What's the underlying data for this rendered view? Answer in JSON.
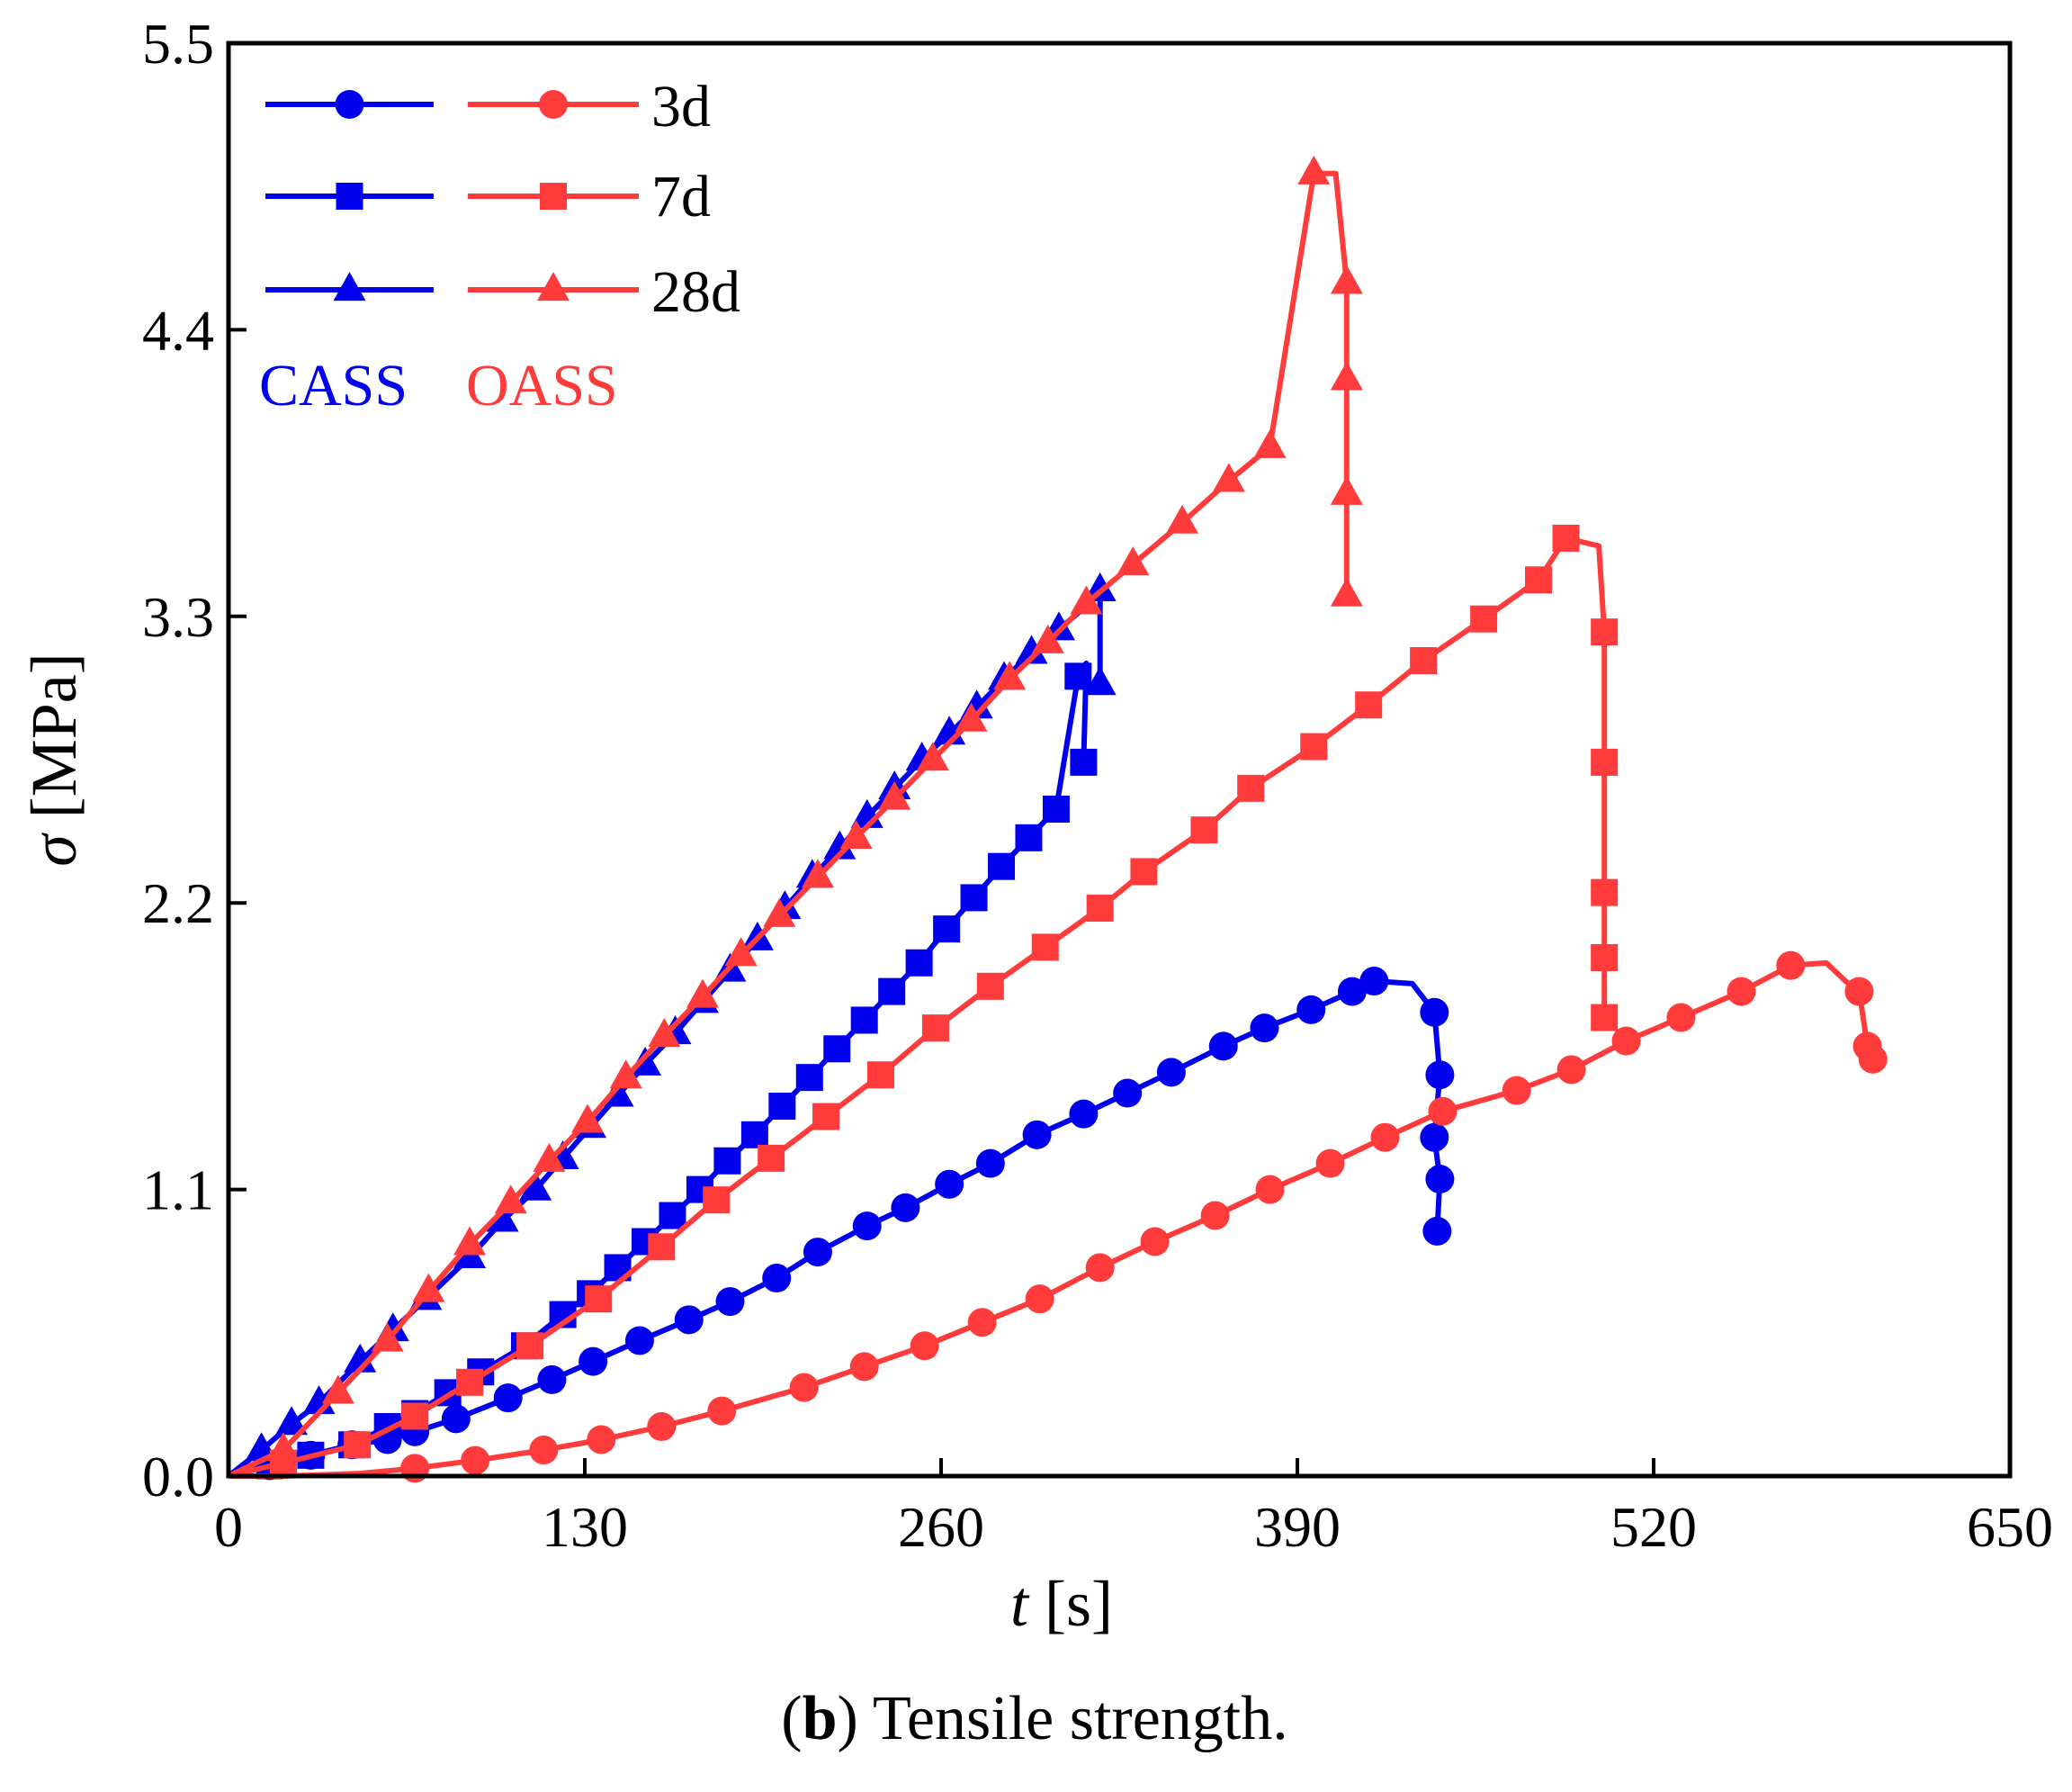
{
  "colors": {
    "cass": "#0000ee",
    "oass": "#ff3b3b",
    "axis": "#000000"
  },
  "chart_data": {
    "type": "line",
    "title": "",
    "xlabel_symbol": "t",
    "xlabel_unit": "[s]",
    "ylabel_symbol": "σ",
    "ylabel_unit": "[MPa]",
    "xlim": [
      0,
      650
    ],
    "ylim": [
      0,
      5.5
    ],
    "xticks": [
      "0",
      "130",
      "260",
      "390",
      "520",
      "650"
    ],
    "yticks": [
      "0.0",
      "1.1",
      "2.2",
      "3.3",
      "4.4",
      "5.5"
    ],
    "legend": {
      "placement": "top-left",
      "labels": [
        "3d",
        "7d",
        "28d"
      ],
      "group_labels": [
        "CASS",
        "OASS"
      ]
    },
    "series": [
      {
        "name": "CASS 3d",
        "group": "CASS",
        "age": "3d",
        "marker": "circle",
        "x": [
          0,
          15,
          30,
          45,
          58,
          68,
          83,
          102,
          118,
          133,
          150,
          168,
          183,
          200,
          215,
          233,
          247,
          263,
          278,
          295,
          312,
          328,
          344,
          363,
          378,
          395,
          410,
          418,
          432,
          440,
          442,
          440,
          442,
          441
        ],
        "y": [
          0,
          0.04,
          0.08,
          0.12,
          0.14,
          0.17,
          0.22,
          0.3,
          0.37,
          0.44,
          0.52,
          0.6,
          0.67,
          0.76,
          0.86,
          0.96,
          1.03,
          1.12,
          1.2,
          1.31,
          1.39,
          1.47,
          1.55,
          1.65,
          1.72,
          1.79,
          1.86,
          1.9,
          1.89,
          1.78,
          1.54,
          1.3,
          1.14,
          0.94
        ],
        "marks": [
          false,
          true,
          true,
          true,
          true,
          true,
          true,
          true,
          true,
          true,
          true,
          true,
          true,
          true,
          true,
          true,
          true,
          true,
          true,
          true,
          true,
          true,
          true,
          true,
          true,
          true,
          true,
          true,
          false,
          true,
          true,
          true,
          true,
          true
        ]
      },
      {
        "name": "CASS 7d",
        "group": "CASS",
        "age": "7d",
        "marker": "square",
        "x": [
          0,
          15,
          30,
          45,
          58,
          68,
          80,
          92,
          108,
          122,
          132,
          142,
          152,
          162,
          172,
          182,
          192,
          202,
          212,
          222,
          232,
          242,
          252,
          262,
          272,
          282,
          292,
          302,
          310,
          313,
          312
        ],
        "y": [
          0,
          0.04,
          0.08,
          0.12,
          0.19,
          0.24,
          0.32,
          0.4,
          0.5,
          0.62,
          0.7,
          0.8,
          0.9,
          1.0,
          1.1,
          1.21,
          1.31,
          1.42,
          1.53,
          1.64,
          1.75,
          1.86,
          1.97,
          2.1,
          2.22,
          2.34,
          2.45,
          2.56,
          3.07,
          3.12,
          2.74
        ],
        "marks": [
          false,
          true,
          true,
          true,
          true,
          true,
          true,
          true,
          true,
          true,
          true,
          true,
          true,
          true,
          true,
          true,
          true,
          true,
          true,
          true,
          true,
          true,
          true,
          true,
          true,
          true,
          true,
          true,
          true,
          false,
          true
        ]
      },
      {
        "name": "CASS 28d",
        "group": "CASS",
        "age": "28d",
        "marker": "triangle",
        "x": [
          0,
          12,
          23,
          33,
          48,
          60,
          72,
          88,
          100,
          112,
          122,
          132,
          142,
          152,
          163,
          173,
          183,
          193,
          203,
          213,
          223,
          233,
          243,
          253,
          263,
          273,
          283,
          293,
          303,
          313,
          318,
          318,
          318
        ],
        "y": [
          0,
          0.1,
          0.2,
          0.28,
          0.44,
          0.56,
          0.68,
          0.84,
          0.98,
          1.1,
          1.22,
          1.34,
          1.46,
          1.58,
          1.7,
          1.82,
          1.94,
          2.06,
          2.18,
          2.3,
          2.41,
          2.53,
          2.64,
          2.75,
          2.85,
          2.95,
          3.06,
          3.16,
          3.25,
          3.34,
          3.4,
          3.16,
          3.04
        ],
        "marks": [
          false,
          true,
          true,
          true,
          true,
          true,
          true,
          true,
          true,
          true,
          true,
          true,
          true,
          true,
          true,
          true,
          true,
          true,
          true,
          true,
          true,
          true,
          true,
          true,
          true,
          true,
          true,
          true,
          true,
          false,
          true,
          false,
          true
        ]
      },
      {
        "name": "OASS 3d",
        "group": "OASS",
        "age": "3d",
        "marker": "circle",
        "x": [
          0,
          20,
          48,
          68,
          90,
          115,
          136,
          158,
          180,
          210,
          232,
          254,
          275,
          296,
          318,
          338,
          360,
          380,
          402,
          422,
          443,
          470,
          490,
          510,
          530,
          552,
          570,
          583,
          590,
          595,
          598,
          600
        ],
        "y": [
          0,
          0.0,
          0.01,
          0.03,
          0.06,
          0.1,
          0.14,
          0.19,
          0.25,
          0.34,
          0.42,
          0.5,
          0.59,
          0.68,
          0.8,
          0.9,
          1.0,
          1.1,
          1.2,
          1.3,
          1.4,
          1.48,
          1.56,
          1.67,
          1.76,
          1.86,
          1.96,
          1.97,
          1.9,
          1.86,
          1.65,
          1.6
        ],
        "marks": [
          false,
          false,
          false,
          true,
          true,
          true,
          true,
          true,
          true,
          true,
          true,
          true,
          true,
          true,
          true,
          true,
          true,
          true,
          true,
          true,
          true,
          true,
          true,
          true,
          true,
          true,
          true,
          false,
          false,
          true,
          true,
          true
        ]
      },
      {
        "name": "OASS 7d",
        "group": "OASS",
        "age": "7d",
        "marker": "square",
        "x": [
          0,
          20,
          47,
          68,
          88,
          110,
          135,
          158,
          178,
          198,
          218,
          238,
          258,
          278,
          298,
          318,
          334,
          356,
          373,
          396,
          416,
          436,
          458,
          478,
          488,
          500,
          502,
          502,
          502,
          502,
          502
        ],
        "y": [
          0,
          0.05,
          0.12,
          0.23,
          0.36,
          0.5,
          0.68,
          0.88,
          1.06,
          1.22,
          1.38,
          1.54,
          1.72,
          1.88,
          2.03,
          2.18,
          2.32,
          2.48,
          2.64,
          2.8,
          2.96,
          3.13,
          3.29,
          3.44,
          3.6,
          3.57,
          3.24,
          2.74,
          2.24,
          1.99,
          1.76
        ],
        "marks": [
          false,
          true,
          true,
          true,
          true,
          true,
          true,
          true,
          true,
          true,
          true,
          true,
          true,
          true,
          true,
          true,
          true,
          true,
          true,
          true,
          true,
          true,
          true,
          true,
          true,
          false,
          true,
          true,
          true,
          true,
          true
        ]
      },
      {
        "name": "OASS 28d",
        "group": "OASS",
        "age": "28d",
        "marker": "triangle",
        "x": [
          0,
          20,
          40,
          58,
          73,
          88,
          103,
          117,
          131,
          145,
          159,
          173,
          187,
          201,
          215,
          229,
          243,
          257,
          271,
          285,
          299,
          313,
          330,
          348,
          365,
          380,
          396,
          404,
          408,
          408,
          408,
          408
        ],
        "y": [
          0,
          0.1,
          0.32,
          0.52,
          0.71,
          0.89,
          1.05,
          1.21,
          1.36,
          1.53,
          1.69,
          1.84,
          2.0,
          2.15,
          2.3,
          2.45,
          2.6,
          2.75,
          2.9,
          3.06,
          3.2,
          3.35,
          3.5,
          3.66,
          3.82,
          3.95,
          5.0,
          5.0,
          4.58,
          4.21,
          3.77,
          3.38
        ],
        "marks": [
          false,
          true,
          true,
          true,
          true,
          true,
          true,
          true,
          true,
          true,
          true,
          true,
          true,
          true,
          true,
          true,
          true,
          true,
          true,
          true,
          true,
          true,
          true,
          true,
          true,
          true,
          true,
          false,
          true,
          true,
          true,
          true
        ]
      }
    ],
    "caption_label": "b",
    "caption_text": ") Tensile strength.",
    "caption_open": "("
  }
}
